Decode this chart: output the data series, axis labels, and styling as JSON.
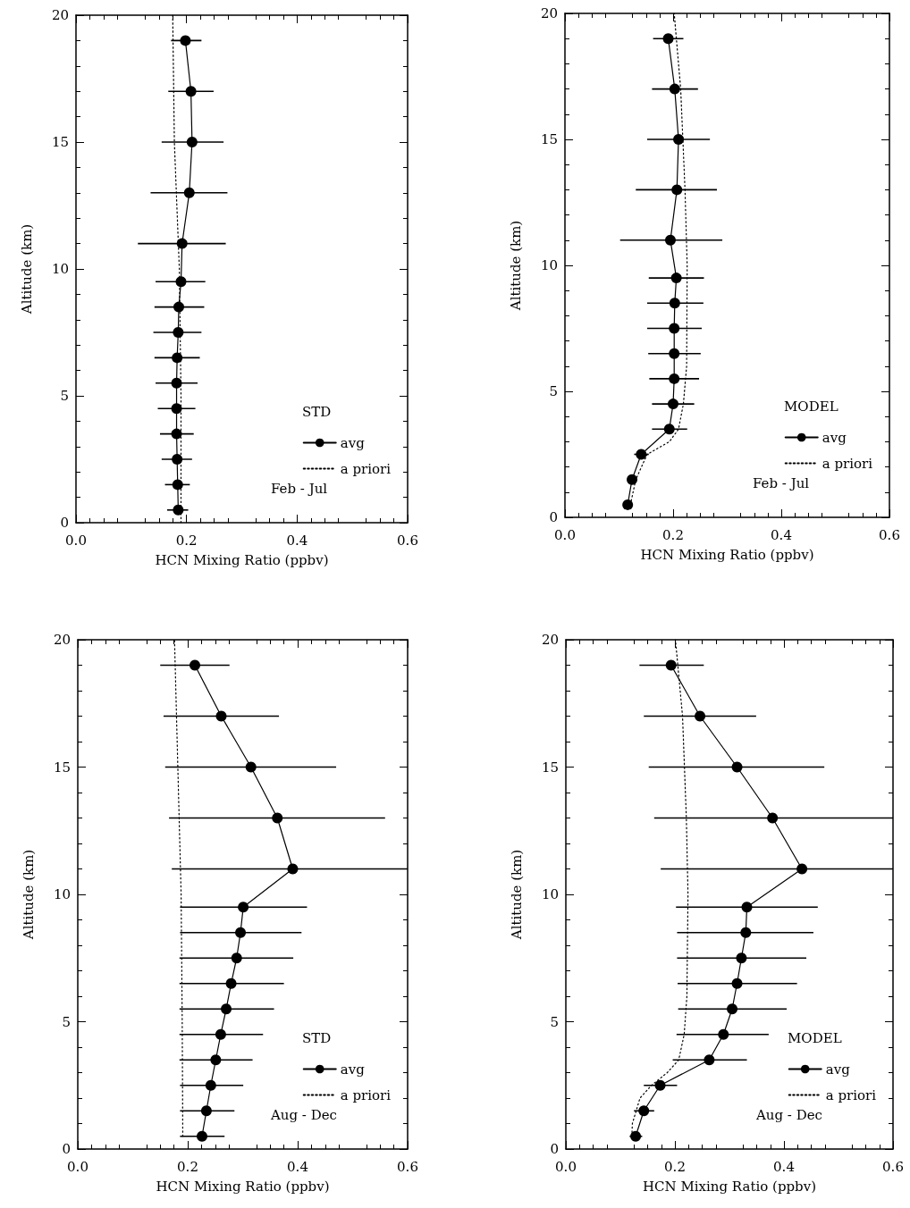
{
  "chart_data": [
    {
      "type": "line",
      "legend_title": "STD",
      "xlabel": "HCN Mixing Ratio (ppbv)",
      "ylabel": "Altitude (km)",
      "xlim": [
        0,
        0.6
      ],
      "xticks": [
        {
          "value": 0,
          "label": "0.0"
        },
        {
          "value": 0.2,
          "label": "0.2"
        },
        {
          "value": 0.4,
          "label": "0.4"
        },
        {
          "value": 0.6,
          "label": "0.6"
        }
      ],
      "ylim": [
        0,
        20
      ],
      "yticks": [
        0,
        5,
        10,
        15,
        20
      ],
      "grid": false,
      "legend": "bottom right",
      "annotations": [
        "Feb - Jul"
      ],
      "series": [
        {
          "name": "avg",
          "color": "#000000",
          "marker": "circle",
          "line_style": "solid",
          "x": [
            0.185,
            0.184,
            0.183,
            0.182,
            0.182,
            0.182,
            0.183,
            0.185,
            0.186,
            0.19,
            0.192,
            0.205,
            0.21,
            0.208,
            0.198
          ],
          "values": [
            0.5,
            1.5,
            2.5,
            3.5,
            4.5,
            5.5,
            6.5,
            7.5,
            8.5,
            9.5,
            11,
            13,
            15,
            17,
            19
          ],
          "xerrors": [
            [
              0.165,
              0.203
            ],
            [
              0.161,
              0.206
            ],
            [
              0.155,
              0.21
            ],
            [
              0.152,
              0.213
            ],
            [
              0.148,
              0.216
            ],
            [
              0.144,
              0.22
            ],
            [
              0.142,
              0.224
            ],
            [
              0.14,
              0.227
            ],
            [
              0.142,
              0.232
            ],
            [
              0.144,
              0.234
            ],
            [
              0.112,
              0.271
            ],
            [
              0.135,
              0.274
            ],
            [
              0.155,
              0.267
            ],
            [
              0.167,
              0.249
            ],
            [
              0.172,
              0.227
            ]
          ]
        },
        {
          "name": "a priori",
          "color": "#000000",
          "marker": "none",
          "line_style": "dotted",
          "x": [
            0.19,
            0.19,
            0.187,
            0.178,
            0.175
          ],
          "values": [
            0,
            5,
            10,
            15,
            20
          ]
        }
      ]
    },
    {
      "type": "line",
      "legend_title": "MODEL",
      "xlabel": "HCN Mixing Ratio (ppbv)",
      "ylabel": "Altitude (km)",
      "xlim": [
        0,
        0.6
      ],
      "xticks": [
        {
          "value": 0,
          "label": "0.0"
        },
        {
          "value": 0.2,
          "label": "0.2"
        },
        {
          "value": 0.4,
          "label": "0.4"
        },
        {
          "value": 0.6,
          "label": "0.6"
        }
      ],
      "ylim": [
        0,
        20
      ],
      "yticks": [
        0,
        5,
        10,
        15,
        20
      ],
      "grid": false,
      "legend": "bottom right",
      "annotations": [
        "Feb - Jul"
      ],
      "series": [
        {
          "name": "avg",
          "color": "#000000",
          "marker": "circle",
          "line_style": "solid",
          "x": [
            0.116,
            0.124,
            0.141,
            0.193,
            0.2,
            0.202,
            0.202,
            0.202,
            0.203,
            0.206,
            0.195,
            0.207,
            0.21,
            0.203,
            0.191
          ],
          "values": [
            0.5,
            1.5,
            2.5,
            3.5,
            4.5,
            5.5,
            6.5,
            7.5,
            8.5,
            9.5,
            11,
            13,
            15,
            17,
            19
          ],
          "xerrors": [
            null,
            [
              0.116,
              0.132
            ],
            [
              0.128,
              0.155
            ],
            [
              0.161,
              0.226
            ],
            [
              0.161,
              0.239
            ],
            [
              0.156,
              0.248
            ],
            [
              0.154,
              0.251
            ],
            [
              0.152,
              0.253
            ],
            [
              0.152,
              0.256
            ],
            [
              0.155,
              0.257
            ],
            [
              0.102,
              0.291
            ],
            [
              0.131,
              0.281
            ],
            [
              0.152,
              0.268
            ],
            [
              0.161,
              0.246
            ],
            [
              0.163,
              0.219
            ]
          ]
        },
        {
          "name": "a priori",
          "color": "#000000",
          "marker": "none",
          "line_style": "dotted",
          "x": [
            0.121,
            0.131,
            0.152,
            0.193,
            0.21,
            0.219,
            0.225,
            0.226,
            0.222,
            0.214,
            0.202
          ],
          "values": [
            0.5,
            1.5,
            2.5,
            3,
            3.5,
            4.5,
            6,
            10,
            13,
            17,
            20
          ]
        }
      ]
    },
    {
      "type": "line",
      "legend_title": "STD",
      "xlabel": "HCN Mixing Ratio (ppbv)",
      "ylabel": "Altitude (km)",
      "xlim": [
        0,
        0.6
      ],
      "xticks": [
        {
          "value": 0,
          "label": "0.0"
        },
        {
          "value": 0.2,
          "label": "0.2"
        },
        {
          "value": 0.4,
          "label": "0.4"
        },
        {
          "value": 0.6,
          "label": "0.6"
        }
      ],
      "ylim": [
        0,
        20
      ],
      "yticks": [
        0,
        5,
        10,
        15,
        20
      ],
      "grid": false,
      "legend": "bottom right",
      "annotations": [
        "Aug - Dec"
      ],
      "series": [
        {
          "name": "avg",
          "color": "#000000",
          "marker": "circle",
          "line_style": "solid",
          "x": [
            0.226,
            0.234,
            0.242,
            0.251,
            0.26,
            0.27,
            0.279,
            0.289,
            0.296,
            0.301,
            0.391,
            0.363,
            0.315,
            0.261,
            0.213
          ],
          "values": [
            0.5,
            1.5,
            2.5,
            3.5,
            4.5,
            5.5,
            6.5,
            7.5,
            8.5,
            9.5,
            11,
            13,
            15,
            17,
            19
          ],
          "xerrors": [
            [
              0.186,
              0.267
            ],
            [
              0.186,
              0.285
            ],
            [
              0.186,
              0.301
            ],
            [
              0.185,
              0.318
            ],
            [
              0.185,
              0.337
            ],
            [
              0.185,
              0.357
            ],
            [
              0.185,
              0.375
            ],
            [
              0.185,
              0.392
            ],
            [
              0.186,
              0.407
            ],
            [
              0.186,
              0.417
            ],
            [
              0.171,
              0.6
            ],
            [
              0.166,
              0.559
            ],
            [
              0.159,
              0.47
            ],
            [
              0.156,
              0.366
            ],
            [
              0.15,
              0.276
            ]
          ]
        },
        {
          "name": "a priori",
          "color": "#000000",
          "marker": "none",
          "line_style": "dotted",
          "x": [
            0.191,
            0.19,
            0.188,
            0.182,
            0.176
          ],
          "values": [
            0.5,
            5,
            10,
            15,
            20
          ]
        }
      ]
    },
    {
      "type": "line",
      "legend_title": "MODEL",
      "xlabel": "HCN Mixing Ratio (ppbv)",
      "ylabel": "Altitude (km)",
      "xlim": [
        0,
        0.6
      ],
      "xticks": [
        {
          "value": 0,
          "label": "0.0"
        },
        {
          "value": 0.2,
          "label": "0.2"
        },
        {
          "value": 0.4,
          "label": "0.4"
        },
        {
          "value": 0.6,
          "label": "0.6"
        }
      ],
      "ylim": [
        0,
        20
      ],
      "yticks": [
        0,
        5,
        10,
        15,
        20
      ],
      "grid": false,
      "legend": "bottom right",
      "annotations": [
        "Aug - Dec"
      ],
      "series": [
        {
          "name": "avg",
          "color": "#000000",
          "marker": "circle",
          "line_style": "solid",
          "x": [
            0.128,
            0.143,
            0.173,
            0.263,
            0.289,
            0.305,
            0.314,
            0.322,
            0.33,
            0.332,
            0.433,
            0.379,
            0.314,
            0.246,
            0.193
          ],
          "values": [
            0.5,
            1.5,
            2.5,
            3.5,
            4.5,
            5.5,
            6.5,
            7.5,
            8.5,
            9.5,
            11,
            13,
            15,
            17,
            19
          ],
          "xerrors": [
            [
              0.117,
              0.14
            ],
            [
              0.125,
              0.162
            ],
            [
              0.143,
              0.204
            ],
            [
              0.196,
              0.332
            ],
            [
              0.203,
              0.372
            ],
            [
              0.206,
              0.405
            ],
            [
              0.205,
              0.424
            ],
            [
              0.204,
              0.441
            ],
            [
              0.204,
              0.454
            ],
            [
              0.202,
              0.462
            ],
            [
              0.174,
              0.6
            ],
            [
              0.162,
              0.6
            ],
            [
              0.152,
              0.474
            ],
            [
              0.143,
              0.349
            ],
            [
              0.135,
              0.253
            ]
          ]
        },
        {
          "name": "a priori",
          "color": "#000000",
          "marker": "none",
          "line_style": "dotted",
          "x": [
            0.121,
            0.122,
            0.136,
            0.157,
            0.186,
            0.207,
            0.217,
            0.222,
            0.224,
            0.221,
            0.214,
            0.201
          ],
          "values": [
            0.5,
            1,
            2,
            2.5,
            3,
            3.5,
            4.5,
            6,
            10,
            13,
            17,
            20
          ]
        }
      ]
    }
  ]
}
